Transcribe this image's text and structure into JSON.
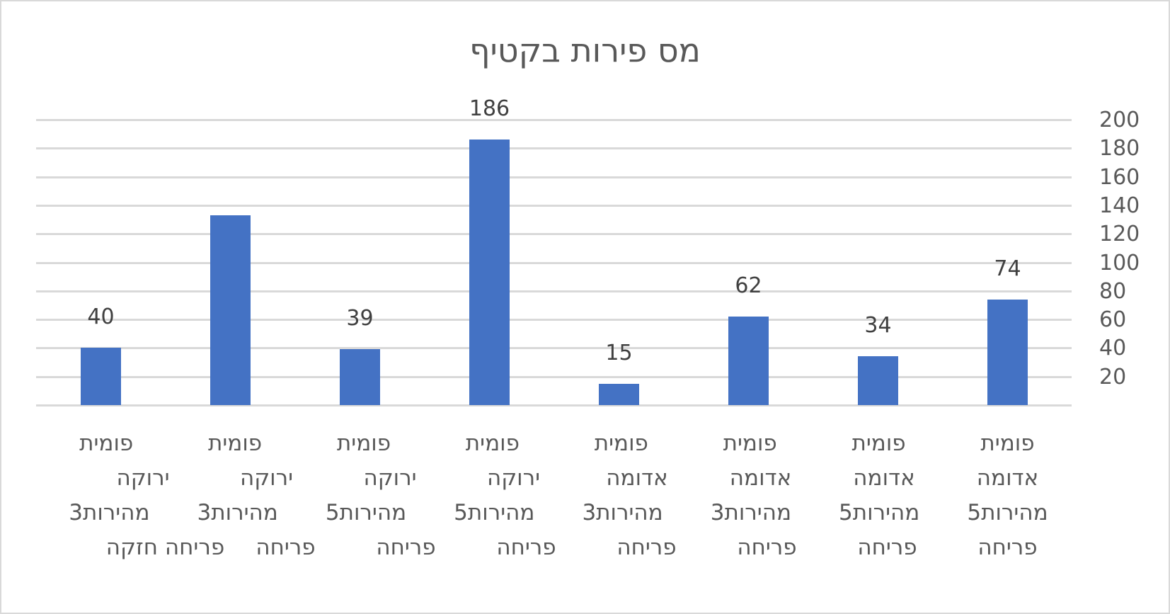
{
  "chart_data": {
    "type": "bar",
    "title": "מס פירות בקטיף",
    "xlabel": "",
    "ylabel": "",
    "ylim": [
      0,
      200
    ],
    "y_axis_position": "right",
    "yticks": [
      20,
      40,
      60,
      80,
      100,
      120,
      140,
      160,
      180,
      200
    ],
    "grid": true,
    "legend": null,
    "bar_color": "#4472c4",
    "categories": [
      "פומית ירוקה מהירות3 פריחה חזקה",
      "פומית ירוקה מהירות3 פריחה",
      "פומית ירוקה מהירות5 פריחה",
      "פומית ירוקה מהירות5 פריחה",
      "פומית אדומה מהירות3 פריחה",
      "פומית אדומה מהירות3 פריחה",
      "פומית אדומה מהירות5 פריחה",
      "פומית אדומה מהירות5 פריחה"
    ],
    "values": [
      40,
      133,
      39,
      186,
      15,
      62,
      34,
      74
    ],
    "data_labels": [
      "40",
      "",
      "39",
      "186",
      "15",
      "62",
      "34",
      "74"
    ]
  },
  "category_lines": [
    [
      "פומית",
      "ירוקה",
      "מהירות3",
      "פריחה חזקה"
    ],
    [
      "פומית",
      "ירוקה",
      "מהירות3",
      "פריחה"
    ],
    [
      "פומית",
      "ירוקה",
      "מהירות5",
      "פריחה"
    ],
    [
      "פומית",
      "ירוקה",
      "מהירות5",
      "פריחה"
    ],
    [
      "פומית",
      "אדומה",
      "מהירות3",
      "פריחה"
    ],
    [
      "פומית",
      "אדומה",
      "מהירות3",
      "פריחה"
    ],
    [
      "פומית",
      "אדומה",
      "מהירות5",
      "פריחה"
    ],
    [
      "פומית",
      "אדומה",
      "מהירות5",
      "פריחה"
    ]
  ],
  "colors": {
    "bar": "#4472c4",
    "gridline": "#d9d9d9",
    "title": "#595959",
    "axis_text": "#595959",
    "data_label": "#404040",
    "border": "#d9d9d9"
  }
}
